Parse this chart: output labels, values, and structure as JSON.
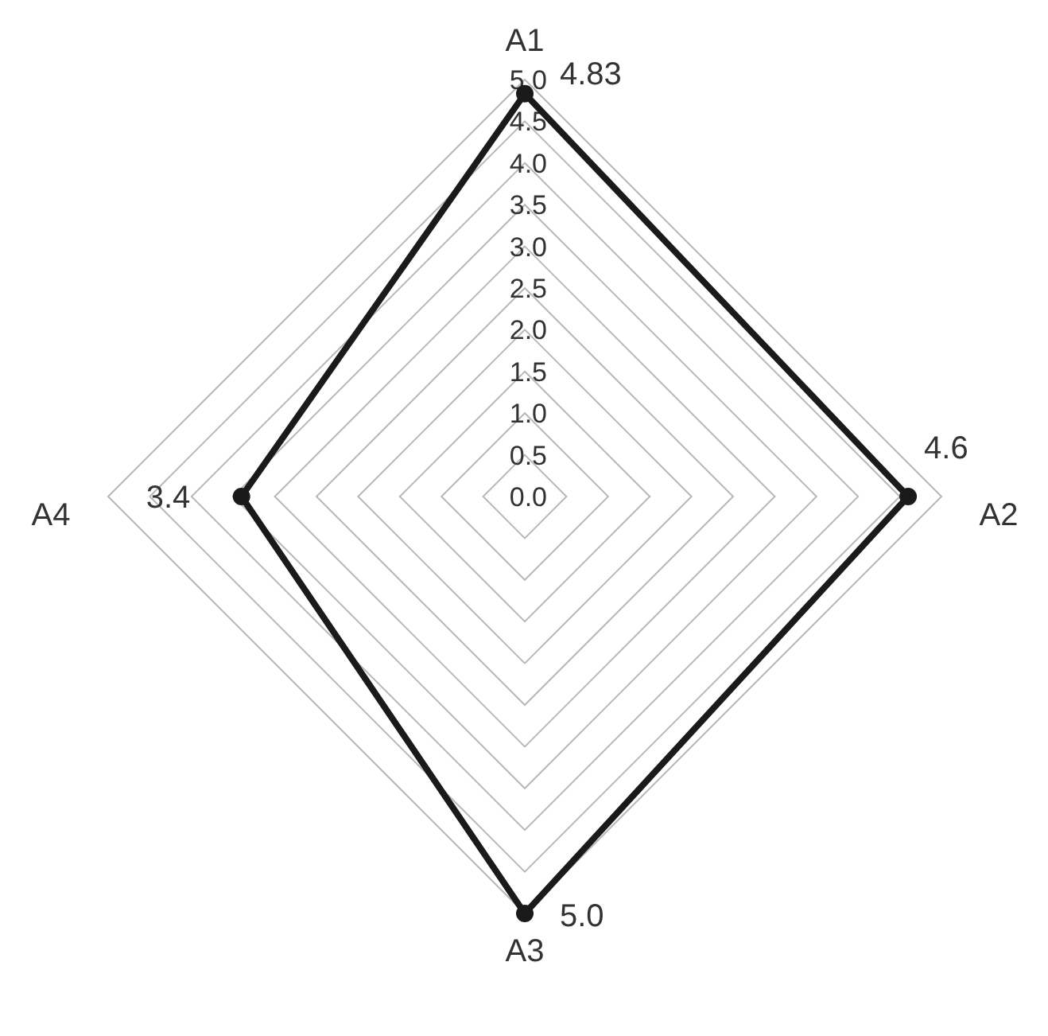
{
  "chart_data": {
    "type": "radar",
    "categories": [
      "A1",
      "A2",
      "A3",
      "A4"
    ],
    "series": [
      {
        "color": "#1a1a1a",
        "values": [
          4.83,
          4.6,
          5.0,
          3.4
        ],
        "value_labels": [
          "4.83",
          "4.6",
          "5.0",
          "3.4"
        ]
      }
    ],
    "ylim": [
      0,
      5
    ],
    "yticks": [
      {
        "value": 0,
        "label": "0.0"
      },
      {
        "value": 0.5,
        "label": "0.5"
      },
      {
        "value": 1,
        "label": "1.0"
      },
      {
        "value": 1.5,
        "label": "1.5"
      },
      {
        "value": 2,
        "label": "2.0"
      },
      {
        "value": 2.5,
        "label": "2.5"
      },
      {
        "value": 3,
        "label": "3.0"
      },
      {
        "value": 3.5,
        "label": "3.5"
      },
      {
        "value": 4,
        "label": "4.0"
      },
      {
        "value": 4.5,
        "label": "4.5"
      },
      {
        "value": 5,
        "label": "5.0"
      }
    ],
    "grid": true,
    "marker": "circle",
    "line_style": "solid"
  }
}
